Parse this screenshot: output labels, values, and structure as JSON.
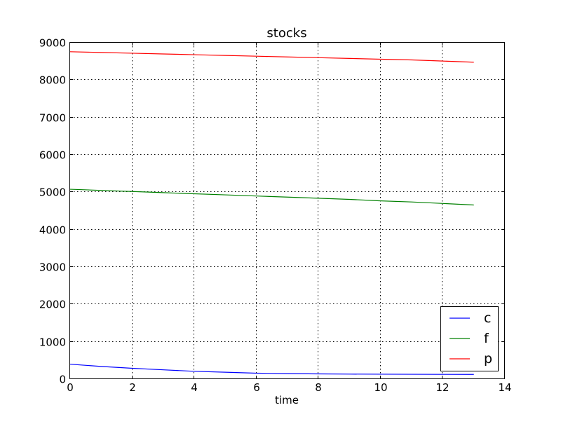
{
  "chart_data": {
    "type": "line",
    "title": "stocks",
    "xlabel": "time",
    "ylabel": "",
    "xlim": [
      0,
      14
    ],
    "ylim": [
      0,
      9000
    ],
    "xticks": [
      0,
      2,
      4,
      6,
      8,
      10,
      12,
      14
    ],
    "yticks": [
      0,
      1000,
      2000,
      3000,
      4000,
      5000,
      6000,
      7000,
      8000,
      9000
    ],
    "grid": true,
    "legend_position": "lower-right",
    "x": [
      0,
      1,
      2,
      3,
      4,
      5,
      6,
      7,
      8,
      9,
      10,
      11,
      12,
      13
    ],
    "series": [
      {
        "name": "c",
        "color": "#0000ff",
        "values": [
          400,
          340,
          290,
          250,
          210,
          185,
          160,
          148,
          140,
          135,
          132,
          130,
          128,
          127
        ]
      },
      {
        "name": "f",
        "color": "#008000",
        "values": [
          5080,
          5050,
          5020,
          4990,
          4960,
          4930,
          4900,
          4870,
          4840,
          4810,
          4770,
          4740,
          4700,
          4660
        ]
      },
      {
        "name": "p",
        "color": "#ff0000",
        "values": [
          8760,
          8740,
          8720,
          8700,
          8680,
          8660,
          8640,
          8620,
          8600,
          8580,
          8560,
          8540,
          8510,
          8480
        ]
      }
    ]
  }
}
